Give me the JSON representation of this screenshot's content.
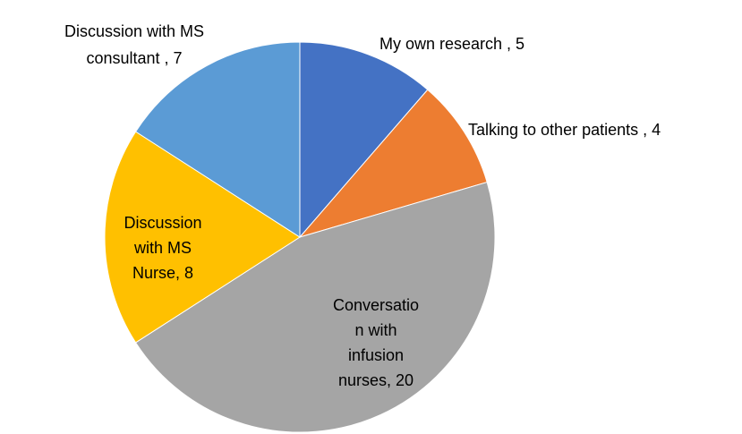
{
  "chart_data": {
    "type": "pie",
    "values": [
      5,
      4,
      20,
      8,
      7
    ],
    "value_labels": [
      "My own research , 5",
      "Talking to other patients , 4",
      "Conversatio\nn with\ninfusion\nnurses, 20",
      "Discussion\nwith MS\nNurse, 8",
      "Discussion with MS\nconsultant , 7"
    ],
    "colors": [
      "#4472c4",
      "#ed7d31",
      "#a5a5a5",
      "#ffc000",
      "#5b9bd5"
    ]
  }
}
